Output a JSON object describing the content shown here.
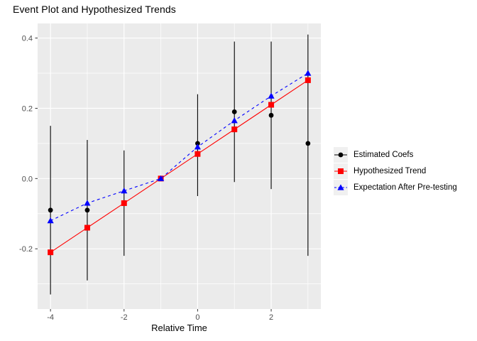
{
  "title": "Event Plot and Hypothesized Trends",
  "chart_data": {
    "type": "line",
    "title": "Event Plot and Hypothesized Trends",
    "xlabel": "Relative Time",
    "ylabel": "",
    "x": [
      -4,
      -3,
      -2,
      -1,
      0,
      1,
      2,
      3
    ],
    "series": [
      {
        "name": "Estimated Coefs",
        "color": "#000000",
        "marker": "circle",
        "line": "none",
        "values": [
          -0.09,
          -0.09,
          -0.07,
          null,
          0.1,
          0.19,
          0.18,
          0.1
        ],
        "ci_low": [
          -0.33,
          -0.29,
          -0.22,
          null,
          -0.05,
          -0.01,
          -0.03,
          -0.22
        ],
        "ci_high": [
          0.15,
          0.11,
          0.08,
          null,
          0.24,
          0.39,
          0.39,
          0.41
        ]
      },
      {
        "name": "Hypothesized Trend",
        "color": "#FF0000",
        "marker": "square",
        "line": "solid",
        "values": [
          -0.21,
          -0.14,
          -0.07,
          0.0,
          0.07,
          0.14,
          0.21,
          0.28
        ]
      },
      {
        "name": "Expectation After Pre-testing",
        "color": "#0000FF",
        "marker": "triangle",
        "line": "dashed",
        "values": [
          -0.12,
          -0.07,
          -0.035,
          0.0,
          0.09,
          0.165,
          0.235,
          0.3
        ]
      }
    ],
    "axes": {
      "x_ticks": [
        {
          "v": -4,
          "label": "-4"
        },
        {
          "v": -2,
          "label": "-2"
        },
        {
          "v": 0,
          "label": "0"
        },
        {
          "v": 2,
          "label": "2"
        }
      ],
      "x_minor": [
        -3,
        -1,
        1,
        3
      ],
      "y_ticks": [
        {
          "v": 0.4,
          "label": "0.4"
        },
        {
          "v": 0.2,
          "label": "0.2"
        },
        {
          "v": 0.0,
          "label": "0.0"
        },
        {
          "v": -0.2,
          "label": "-0.2"
        }
      ],
      "y_minor": [
        0.3,
        0.1,
        -0.1,
        -0.3
      ]
    },
    "xlim": [
      -4.35,
      3.35
    ],
    "ylim": [
      -0.3715,
      0.4416
    ],
    "grid": true,
    "legend_position": "right",
    "colors": {
      "panel_bg": "#EBEBEB",
      "grid": "#FFFFFF",
      "axis_text": "#4D4D4D",
      "tick": "#333333",
      "legend_key_bg": "#F0F0F0"
    }
  }
}
